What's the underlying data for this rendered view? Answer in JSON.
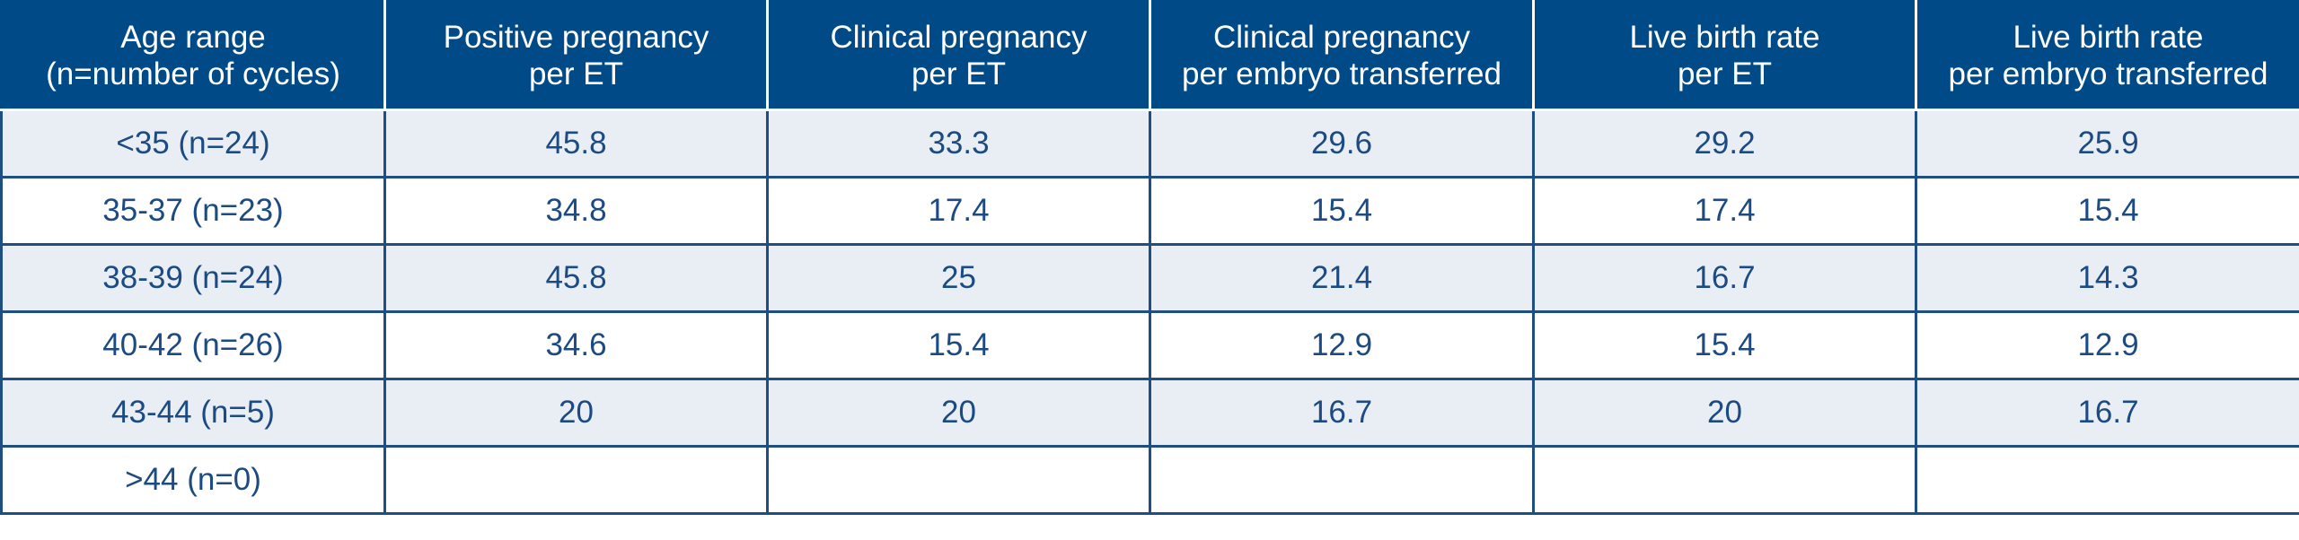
{
  "table": {
    "headers": [
      [
        "Age range",
        "(n=number of cycles)"
      ],
      [
        "Positive pregnancy",
        "per ET"
      ],
      [
        "Clinical pregnancy",
        "per ET"
      ],
      [
        "Clinical pregnancy",
        "per embryo transferred"
      ],
      [
        "Live birth rate",
        "per ET"
      ],
      [
        "Live birth rate",
        "per embryo transferred"
      ]
    ],
    "rows": [
      [
        "<35 (n=24)",
        "45.8",
        "33.3",
        "29.6",
        "29.2",
        "25.9"
      ],
      [
        "35-37 (n=23)",
        "34.8",
        "17.4",
        "15.4",
        "17.4",
        "15.4"
      ],
      [
        "38-39 (n=24)",
        "45.8",
        "25",
        "21.4",
        "16.7",
        "14.3"
      ],
      [
        "40-42 (n=26)",
        "34.6",
        "15.4",
        "12.9",
        "15.4",
        "12.9"
      ],
      [
        "43-44 (n=5)",
        "20",
        "20",
        "16.7",
        "20",
        "16.7"
      ],
      [
        ">44 (n=0)",
        "",
        "",
        "",
        "",
        ""
      ]
    ]
  },
  "colors": {
    "header_bg": "#004b87",
    "header_text": "#ffffff",
    "body_text": "#1c4a82",
    "row_shade": "#e9eef4",
    "border": "#1f4f82"
  }
}
